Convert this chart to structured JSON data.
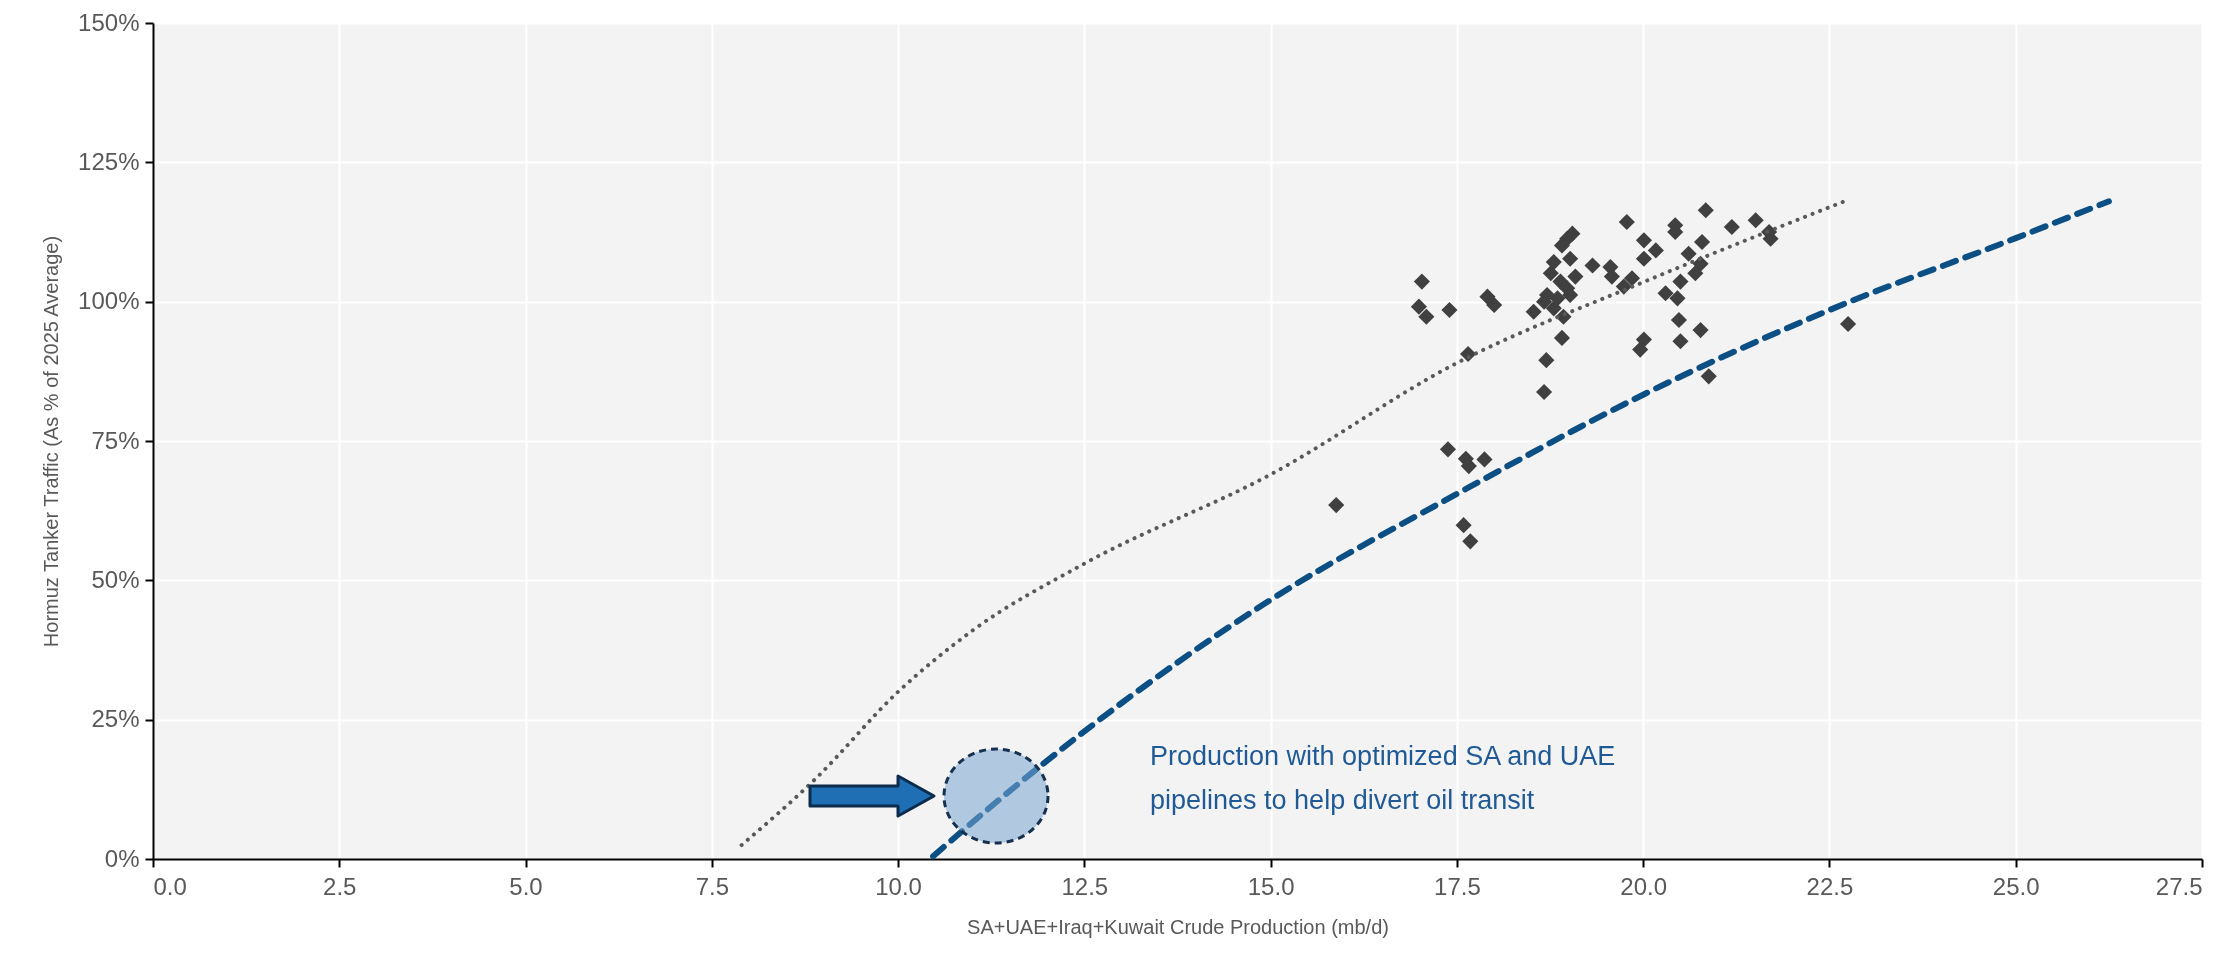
{
  "chart_data": {
    "type": "scatter",
    "xlabel": "SA+UAE+Iraq+Kuwait Crude Production (mb/d)",
    "ylabel": "Hormuz Tanker Traffic (As % of 2025 Average)",
    "xlim": [
      0,
      27.5
    ],
    "xticks": [
      {
        "value": 0,
        "label": "0.0"
      },
      {
        "value": 2.5,
        "label": "2.5"
      },
      {
        "value": 5,
        "label": "5.0"
      },
      {
        "value": 7.5,
        "label": "7.5"
      },
      {
        "value": 10,
        "label": "10.0"
      },
      {
        "value": 12.5,
        "label": "12.5"
      },
      {
        "value": 15,
        "label": "15.0"
      },
      {
        "value": 17.5,
        "label": "17.5"
      },
      {
        "value": 20,
        "label": "20.0"
      },
      {
        "value": 22.5,
        "label": "22.5"
      },
      {
        "value": 25,
        "label": "25.0"
      },
      {
        "value": 27.5,
        "label": "27.5"
      }
    ],
    "ylim": [
      0,
      150
    ],
    "yticks": [
      {
        "value": 0,
        "label": "0%"
      },
      {
        "value": 25,
        "label": "25%"
      },
      {
        "value": 50,
        "label": "50%"
      },
      {
        "value": 75,
        "label": "75%"
      },
      {
        "value": 100,
        "label": "100%"
      },
      {
        "value": 125,
        "label": "125%"
      },
      {
        "value": 150,
        "label": "150%"
      }
    ],
    "grid": true,
    "series": [
      {
        "marker": "diamond",
        "color": "#404040",
        "x": [
          17.03,
          16.99,
          17.09,
          17.4,
          17.91,
          18.0,
          17.65,
          15.88,
          17.38,
          17.62,
          17.66,
          17.87,
          17.59,
          17.68,
          18.7,
          18.67,
          18.91,
          19.05,
          18.98,
          18.91,
          19.02,
          18.8,
          18.76,
          19.09,
          18.89,
          18.98,
          18.71,
          18.85,
          19.02,
          18.67,
          18.53,
          18.93,
          18.8,
          19.32,
          19.56,
          19.58,
          19.74,
          19.85,
          19.78,
          20.01,
          20.01,
          20.17,
          20.43,
          20.43,
          20.84,
          21.19,
          21.51,
          21.69,
          21.71,
          20.61,
          20.79,
          20.77,
          20.7,
          20.5,
          20.3,
          20.46,
          20.48,
          20.77,
          20.5,
          20.01,
          19.96,
          20.88,
          22.75
        ],
        "values": [
          103.6,
          99.1,
          97.3,
          98.5,
          100.9,
          99.4,
          90.6,
          63.5,
          73.5,
          71.8,
          70.5,
          71.7,
          59.9,
          57.0,
          89.5,
          83.8,
          93.5,
          112.2,
          111.3,
          110.1,
          107.7,
          107.1,
          105.1,
          104.5,
          103.6,
          102.4,
          101.2,
          100.6,
          101.2,
          100,
          98.2,
          97.3,
          98.8,
          106.5,
          106.2,
          104.5,
          102.7,
          104.2,
          114.3,
          111,
          107.7,
          109.2,
          113.7,
          112.5,
          116.4,
          113.4,
          114.6,
          112.5,
          111.3,
          108.6,
          110.7,
          106.8,
          105.1,
          103.6,
          101.5,
          100.6,
          96.7,
          94.9,
          92.9,
          93.2,
          91.4,
          86.6,
          96.0
        ]
      },
      {
        "type": "line",
        "line_style": "dotted",
        "color": "#595959",
        "x": [
          7.9,
          8.9,
          10,
          11,
          12.5,
          15,
          17.5,
          20,
          22.7
        ],
        "values": [
          2.5,
          14.5,
          30,
          41,
          53,
          69,
          89,
          103.5,
          118
        ]
      },
      {
        "type": "line",
        "line_style": "dashed",
        "color": "#0b4f85",
        "x": [
          10.47,
          11.3,
          12.5,
          15,
          17.5,
          20,
          22.5,
          25,
          26.25
        ],
        "values": [
          0.5,
          10,
          22.9,
          46.5,
          65.5,
          83.3,
          98.5,
          111.4,
          118
        ]
      }
    ],
    "annotations": [
      "Production with optimized SA and UAE pipelines to help divert oil transit"
    ]
  }
}
